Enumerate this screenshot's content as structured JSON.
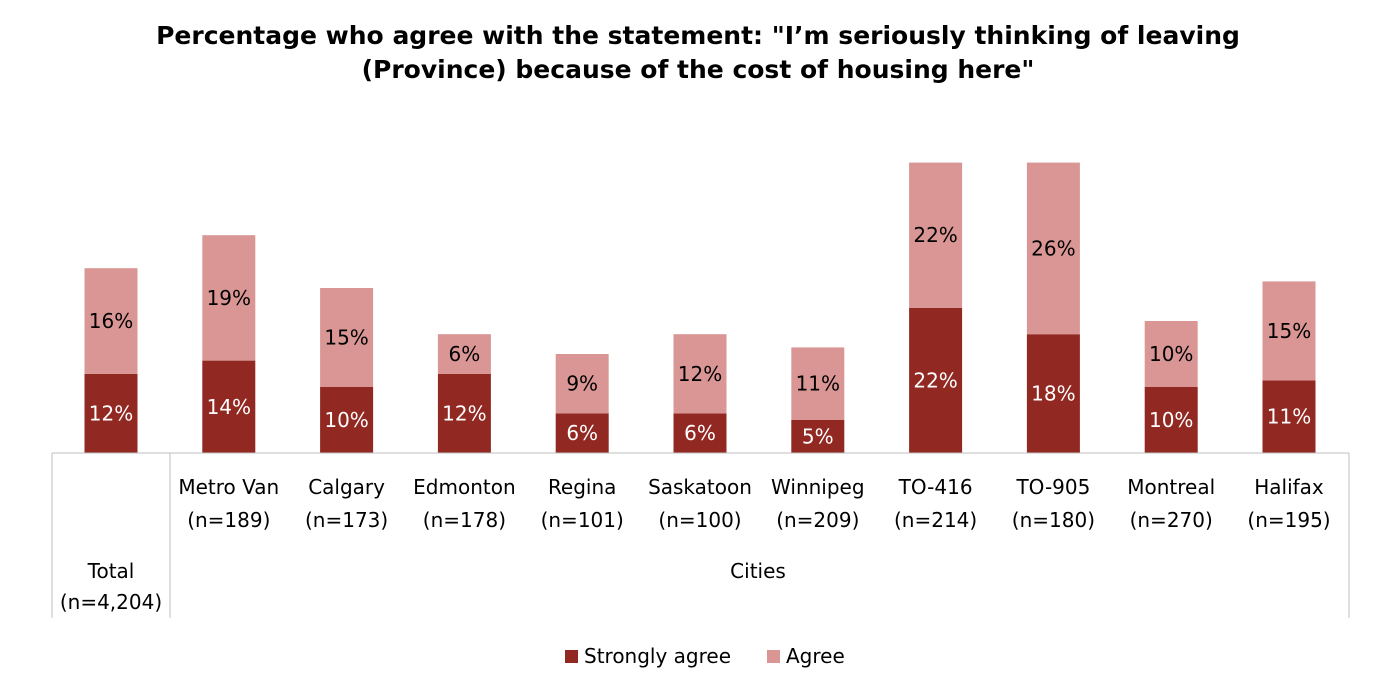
{
  "chart_data": {
    "type": "bar",
    "stacked": true,
    "title": "Percentage who agree with the statement: \"I’m seriously thinking of leaving (Province) because of the cost of housing here\"",
    "title_lines": [
      "Percentage who agree with the statement: \"I’m seriously thinking of leaving",
      "(Province) because of the cost of housing here\""
    ],
    "categories": [
      {
        "name": "Total",
        "sample": "(n=4,204)"
      },
      {
        "name": "Metro Van",
        "sample": "(n=189)"
      },
      {
        "name": "Calgary",
        "sample": "(n=173)"
      },
      {
        "name": "Edmonton",
        "sample": "(n=178)"
      },
      {
        "name": "Regina",
        "sample": "(n=101)"
      },
      {
        "name": "Saskatoon",
        "sample": "(n=100)"
      },
      {
        "name": "Winnipeg",
        "sample": "(n=209)"
      },
      {
        "name": "TO-416",
        "sample": "(n=214)"
      },
      {
        "name": "TO-905",
        "sample": "(n=180)"
      },
      {
        "name": "Montreal",
        "sample": "(n=270)"
      },
      {
        "name": "Halifax",
        "sample": "(n=195)"
      }
    ],
    "group_label": "Cities",
    "series": [
      {
        "name": "Strongly agree",
        "color": "#922822",
        "label_color": "#ffffff",
        "values": [
          12,
          14,
          10,
          12,
          6,
          6,
          5,
          22,
          18,
          10,
          11
        ],
        "labels": [
          "12%",
          "14%",
          "10%",
          "12%",
          "6%",
          "6%",
          "5%",
          "22%",
          "18%",
          "10%",
          "11%"
        ]
      },
      {
        "name": "Agree",
        "color": "#d99694",
        "label_color": "#000000",
        "values": [
          16,
          19,
          15,
          6,
          9,
          12,
          11,
          22,
          26,
          10,
          15
        ],
        "labels": [
          "16%",
          "19%",
          "15%",
          "6%",
          "9%",
          "12%",
          "11%",
          "22%",
          "26%",
          "10%",
          "15%"
        ]
      }
    ],
    "legend": {
      "position": "bottom-center",
      "entries": [
        "Strongly agree",
        "Agree"
      ]
    },
    "ylim": [
      0,
      45
    ],
    "grid": false,
    "axis_line_color": "#bfbfbf"
  }
}
